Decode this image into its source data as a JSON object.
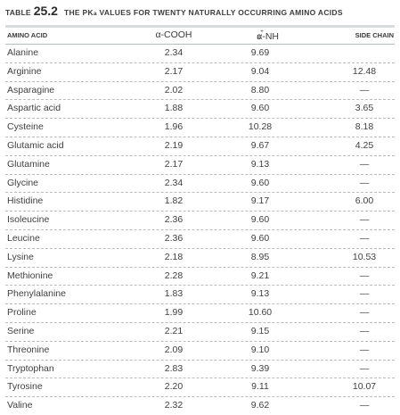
{
  "caption": {
    "label": "TABLE",
    "number": "25.2",
    "title_prefix": "THE P",
    "title_k": "K",
    "title_sub": "a",
    "title_suffix": " VALUES FOR TWENTY NATURALLY OCCURRING AMINO ACIDS"
  },
  "headers": {
    "amino": "AMINO ACID",
    "cooh": "α-COOH",
    "nh3_prefix": "α-NH",
    "nh3_sub": "3",
    "nh3_sup": "+",
    "side": "SIDE CHAIN"
  },
  "rows": [
    {
      "name": "Alanine",
      "cooh": "2.34",
      "nh3": "9.69",
      "side": ""
    },
    {
      "name": "Arginine",
      "cooh": "2.17",
      "nh3": "9.04",
      "side": "12.48"
    },
    {
      "name": "Asparagine",
      "cooh": "2.02",
      "nh3": "8.80",
      "side": "—"
    },
    {
      "name": "Aspartic acid",
      "cooh": "1.88",
      "nh3": "9.60",
      "side": "3.65"
    },
    {
      "name": "Cysteine",
      "cooh": "1.96",
      "nh3": "10.28",
      "side": "8.18"
    },
    {
      "name": "Glutamic acid",
      "cooh": "2.19",
      "nh3": "9.67",
      "side": "4.25"
    },
    {
      "name": "Glutamine",
      "cooh": "2.17",
      "nh3": "9.13",
      "side": "—"
    },
    {
      "name": "Glycine",
      "cooh": "2.34",
      "nh3": "9.60",
      "side": "—"
    },
    {
      "name": "Histidine",
      "cooh": "1.82",
      "nh3": "9.17",
      "side": "6.00"
    },
    {
      "name": "Isoleucine",
      "cooh": "2.36",
      "nh3": "9.60",
      "side": "—"
    },
    {
      "name": "Leucine",
      "cooh": "2.36",
      "nh3": "9.60",
      "side": "—"
    },
    {
      "name": "Lysine",
      "cooh": "2.18",
      "nh3": "8.95",
      "side": "10.53"
    },
    {
      "name": "Methionine",
      "cooh": "2.28",
      "nh3": "9.21",
      "side": "—"
    },
    {
      "name": "Phenylalanine",
      "cooh": "1.83",
      "nh3": "9.13",
      "side": "—"
    },
    {
      "name": "Proline",
      "cooh": "1.99",
      "nh3": "10.60",
      "side": "—"
    },
    {
      "name": "Serine",
      "cooh": "2.21",
      "nh3": "9.15",
      "side": "—"
    },
    {
      "name": "Threonine",
      "cooh": "2.09",
      "nh3": "9.10",
      "side": "—"
    },
    {
      "name": "Tryptophan",
      "cooh": "2.83",
      "nh3": "9.39",
      "side": "—"
    },
    {
      "name": "Tyrosine",
      "cooh": "2.20",
      "nh3": "9.11",
      "side": "10.07"
    },
    {
      "name": "Valine",
      "cooh": "2.32",
      "nh3": "9.62",
      "side": "—"
    }
  ]
}
